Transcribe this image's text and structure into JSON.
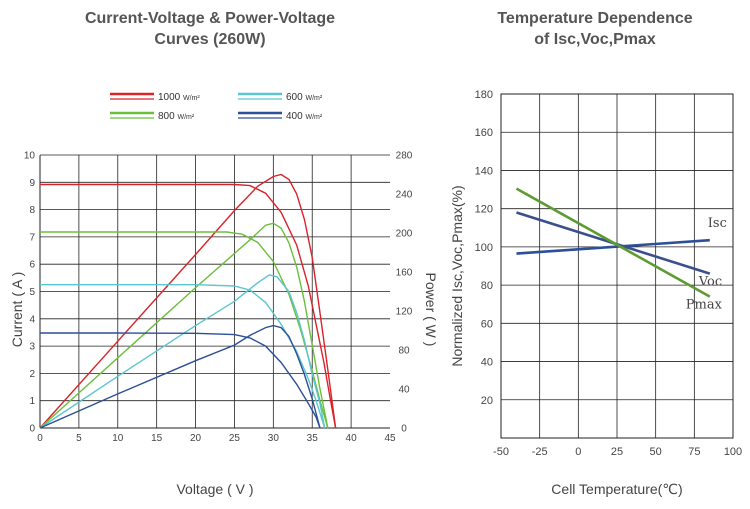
{
  "chart_data": [
    {
      "type": "line",
      "title_line1": "Current-Voltage & Power-Voltage",
      "title_line2": "Curves (260W)",
      "xlabel": "Voltage ( V )",
      "ylabel": "Current ( A )",
      "y2label": "Power ( W )",
      "xlim": [
        0,
        45
      ],
      "ylim": [
        0,
        10
      ],
      "y2lim": [
        0,
        280
      ],
      "xticks": [
        "0",
        "5",
        "10",
        "15",
        "20",
        "25",
        "30",
        "35",
        "40",
        "45"
      ],
      "yticks": [
        "0",
        "1",
        "2",
        "3",
        "4",
        "5",
        "6",
        "7",
        "8",
        "9",
        "10"
      ],
      "y2ticks": [
        "0",
        "40",
        "80",
        "120",
        "160",
        "200",
        "240",
        "280"
      ],
      "grid": true,
      "legend_position": "top",
      "legend": [
        {
          "label": "1000",
          "unit": "W/m²",
          "color": "#d9232a"
        },
        {
          "label": "600",
          "unit": "W/m²",
          "color": "#5bc6d0"
        },
        {
          "label": "800",
          "unit": "W/m²",
          "color": "#6cbf3c"
        },
        {
          "label": "400",
          "unit": "W/m²",
          "color": "#2c4f97"
        }
      ],
      "series": [
        {
          "irradiance": "1000",
          "color": "#d9232a",
          "iv": [
            [
              0,
              8.92
            ],
            [
              10,
              8.92
            ],
            [
              20,
              8.92
            ],
            [
              25,
              8.92
            ],
            [
              27,
              8.88
            ],
            [
              29,
              8.6
            ],
            [
              31,
              7.9
            ],
            [
              33,
              6.7
            ],
            [
              34.5,
              5.2
            ],
            [
              35.5,
              3.8
            ],
            [
              36.5,
              2.4
            ],
            [
              37.3,
              1.1
            ],
            [
              38,
              0
            ]
          ],
          "pv": [
            [
              0,
              0
            ],
            [
              10,
              89
            ],
            [
              20,
              178
            ],
            [
              25,
              223
            ],
            [
              28,
              248
            ],
            [
              30,
              258
            ],
            [
              31,
              260
            ],
            [
              32,
              255
            ],
            [
              33,
              240
            ],
            [
              34,
              214
            ],
            [
              35,
              175
            ],
            [
              36,
              118
            ],
            [
              37,
              60
            ],
            [
              38,
              0
            ]
          ]
        },
        {
          "irradiance": "800",
          "color": "#6cbf3c",
          "iv": [
            [
              0,
              7.18
            ],
            [
              10,
              7.18
            ],
            [
              20,
              7.18
            ],
            [
              24,
              7.18
            ],
            [
              26,
              7.1
            ],
            [
              28,
              6.8
            ],
            [
              30,
              6.1
            ],
            [
              32,
              4.9
            ],
            [
              33.5,
              3.6
            ],
            [
              35,
              2.1
            ],
            [
              36,
              1.0
            ],
            [
              37,
              0
            ]
          ],
          "pv": [
            [
              0,
              0
            ],
            [
              10,
              72
            ],
            [
              20,
              144
            ],
            [
              24,
              172
            ],
            [
              27,
              193
            ],
            [
              29,
              208
            ],
            [
              30,
              210
            ],
            [
              31,
              205
            ],
            [
              32,
              190
            ],
            [
              33,
              165
            ],
            [
              34,
              130
            ],
            [
              35,
              85
            ],
            [
              36,
              40
            ],
            [
              37,
              0
            ]
          ]
        },
        {
          "irradiance": "600",
          "color": "#5bc6d0",
          "iv": [
            [
              0,
              5.25
            ],
            [
              10,
              5.25
            ],
            [
              20,
              5.25
            ],
            [
              25,
              5.2
            ],
            [
              27,
              5.05
            ],
            [
              29,
              4.6
            ],
            [
              31,
              3.8
            ],
            [
              33,
              2.8
            ],
            [
              34.5,
              1.8
            ],
            [
              35.5,
              1.0
            ],
            [
              36.6,
              0
            ]
          ],
          "pv": [
            [
              0,
              0
            ],
            [
              10,
              53
            ],
            [
              20,
              105
            ],
            [
              25,
              130
            ],
            [
              28,
              149
            ],
            [
              29.5,
              157
            ],
            [
              30.5,
              155
            ],
            [
              32,
              140
            ],
            [
              33,
              118
            ],
            [
              34,
              90
            ],
            [
              35,
              55
            ],
            [
              36,
              25
            ],
            [
              36.6,
              0
            ]
          ]
        },
        {
          "irradiance": "400",
          "color": "#2c4f97",
          "iv": [
            [
              0,
              3.48
            ],
            [
              10,
              3.48
            ],
            [
              20,
              3.47
            ],
            [
              25,
              3.42
            ],
            [
              27,
              3.3
            ],
            [
              29,
              3.0
            ],
            [
              31,
              2.4
            ],
            [
              33,
              1.6
            ],
            [
              34.5,
              0.9
            ],
            [
              35.5,
              0.4
            ],
            [
              36,
              0
            ]
          ],
          "pv": [
            [
              0,
              0
            ],
            [
              10,
              35
            ],
            [
              20,
              69
            ],
            [
              25,
              85
            ],
            [
              27,
              95
            ],
            [
              29,
              103
            ],
            [
              30,
              105
            ],
            [
              31,
              103
            ],
            [
              32,
              94
            ],
            [
              33,
              76
            ],
            [
              34,
              55
            ],
            [
              35,
              30
            ],
            [
              36,
              0
            ]
          ]
        }
      ]
    },
    {
      "type": "line",
      "title_line1": "Temperature Dependence",
      "title_line2": "of Isc,Voc,Pmax",
      "xlabel": "Cell Temperature(℃)",
      "ylabel": "Normalized Isc,Voc,Pmax(%)",
      "xlim": [
        -50,
        100
      ],
      "ylim": [
        0,
        180
      ],
      "xticks": [
        "-50",
        "-25",
        "0",
        "25",
        "50",
        "75",
        "100"
      ],
      "yticks": [
        "20",
        "40",
        "60",
        "80",
        "100",
        "120",
        "140",
        "160",
        "180"
      ],
      "grid": true,
      "series": [
        {
          "name": "Isc",
          "color": "#2c4f97",
          "x": [
            -40,
            85
          ],
          "y": [
            96.5,
            103.5
          ]
        },
        {
          "name": "Voc",
          "color": "#3b4f8c",
          "x": [
            -40,
            85
          ],
          "y": [
            118,
            86
          ]
        },
        {
          "name": "Pmax",
          "color": "#5c9b2f",
          "x": [
            -40,
            85
          ],
          "y": [
            130.5,
            74
          ]
        }
      ]
    }
  ]
}
